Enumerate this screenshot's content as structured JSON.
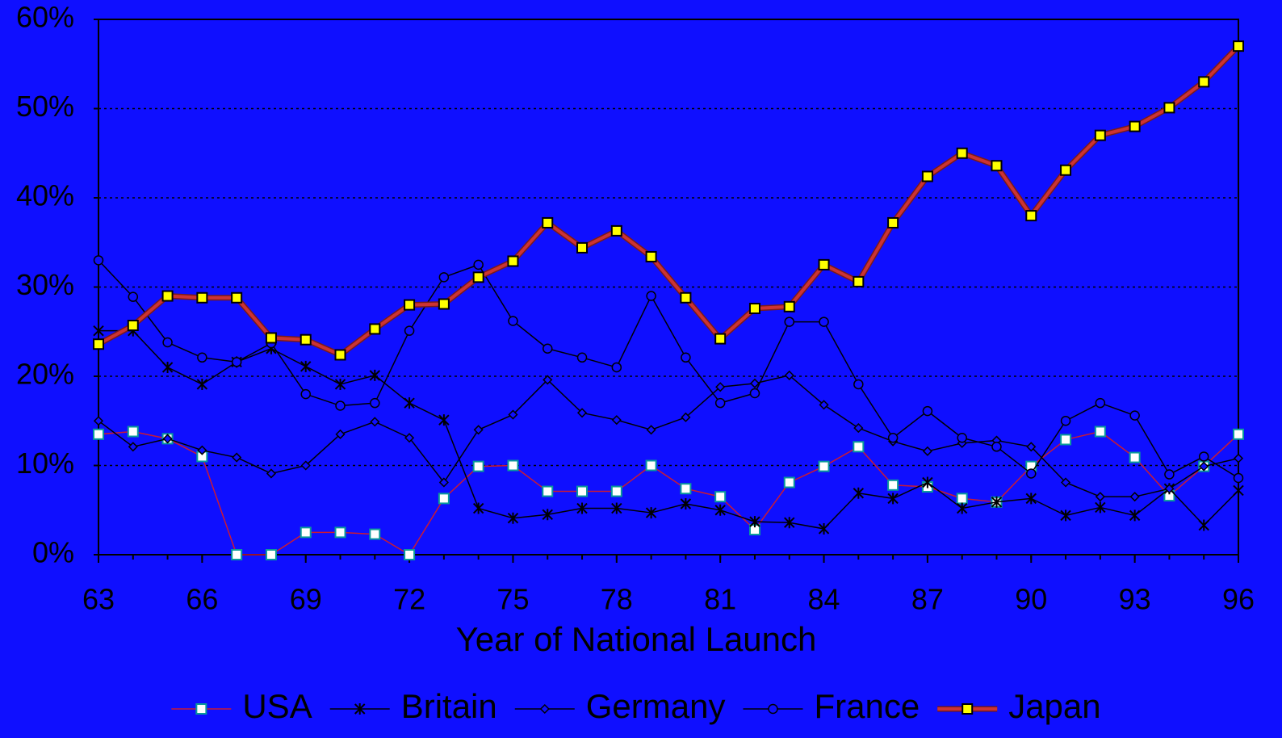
{
  "chart_data": {
    "type": "line",
    "xlabel": "Year of National Launch",
    "x": [
      63,
      64,
      65,
      66,
      67,
      68,
      69,
      70,
      71,
      72,
      73,
      74,
      75,
      76,
      77,
      78,
      79,
      80,
      81,
      82,
      83,
      84,
      85,
      86,
      87,
      88,
      89,
      90,
      91,
      92,
      93,
      94,
      95,
      96
    ],
    "xlim": [
      63,
      96
    ],
    "xticks": [
      63,
      66,
      69,
      72,
      75,
      78,
      81,
      84,
      87,
      90,
      93,
      96
    ],
    "ylim": [
      0,
      60
    ],
    "yticks": [
      {
        "value": 0,
        "label": "0%"
      },
      {
        "value": 10,
        "label": "10%"
      },
      {
        "value": 20,
        "label": "20%"
      },
      {
        "value": 30,
        "label": "30%"
      },
      {
        "value": 40,
        "label": "40%"
      },
      {
        "value": 50,
        "label": "50%"
      },
      {
        "value": 60,
        "label": "60%"
      }
    ],
    "grid": true,
    "legend": "bottom",
    "background": "#0f0fff",
    "series": [
      {
        "name": "USA",
        "color": "#cc1a33",
        "marker": "square",
        "marker_fill": "#ffffff",
        "marker_stroke": "#0a9a9a",
        "values": [
          13.5,
          13.8,
          13.0,
          11.0,
          0,
          0,
          2.5,
          2.5,
          2.3,
          0,
          6.3,
          9.9,
          10.0,
          7.1,
          7.1,
          7.1,
          10.0,
          7.4,
          6.5,
          2.8,
          8.1,
          9.9,
          12.1,
          7.8,
          7.6,
          6.3,
          5.9,
          9.9,
          12.9,
          13.8,
          10.9,
          6.6,
          9.9,
          13.5
        ]
      },
      {
        "name": "Britain",
        "color": "#000000",
        "marker": "asterisk",
        "values": [
          25.1,
          25.1,
          21.0,
          19.1,
          21.6,
          23.1,
          21.1,
          19.1,
          20.1,
          17.0,
          15.1,
          5.2,
          4.1,
          4.5,
          5.2,
          5.2,
          4.7,
          5.7,
          5.0,
          3.7,
          3.6,
          2.9,
          6.9,
          6.3,
          8.1,
          5.2,
          5.9,
          6.3,
          4.4,
          5.3,
          4.4,
          7.4,
          3.3,
          7.2
        ]
      },
      {
        "name": "Germany",
        "color": "#000000",
        "marker": "diamond",
        "values": [
          15.0,
          12.1,
          13.0,
          11.7,
          10.9,
          9.1,
          10.0,
          13.5,
          14.9,
          13.1,
          8.1,
          14.0,
          15.7,
          19.6,
          15.9,
          15.1,
          14.0,
          15.4,
          18.8,
          19.2,
          20.1,
          16.8,
          14.2,
          12.7,
          11.6,
          12.5,
          12.8,
          12.1,
          8.1,
          6.5,
          6.5,
          7.4,
          9.9,
          10.8
        ]
      },
      {
        "name": "France",
        "color": "#000000",
        "marker": "circle",
        "values": [
          33.0,
          28.9,
          23.8,
          22.1,
          21.6,
          23.7,
          18.0,
          16.7,
          17.0,
          25.1,
          31.1,
          32.5,
          26.2,
          23.1,
          22.1,
          21.0,
          29.0,
          22.1,
          17.0,
          18.1,
          26.1,
          26.1,
          19.1,
          13.1,
          16.1,
          13.1,
          12.1,
          9.1,
          15.0,
          17.0,
          15.6,
          9.0,
          11.0,
          8.6
        ]
      },
      {
        "name": "Japan",
        "color": "#cc3333",
        "marker": "square",
        "marker_fill": "#ffff00",
        "marker_stroke": "#000000",
        "thick": true,
        "values": [
          23.6,
          25.7,
          29.0,
          28.8,
          28.8,
          24.3,
          24.1,
          22.4,
          25.3,
          28.0,
          28.1,
          31.1,
          32.9,
          37.2,
          34.4,
          36.3,
          33.4,
          28.8,
          24.2,
          27.6,
          27.8,
          32.5,
          30.6,
          37.2,
          42.4,
          45.0,
          43.6,
          38.0,
          43.1,
          47.0,
          48.0,
          50.1,
          53.0,
          57.0
        ]
      }
    ]
  }
}
